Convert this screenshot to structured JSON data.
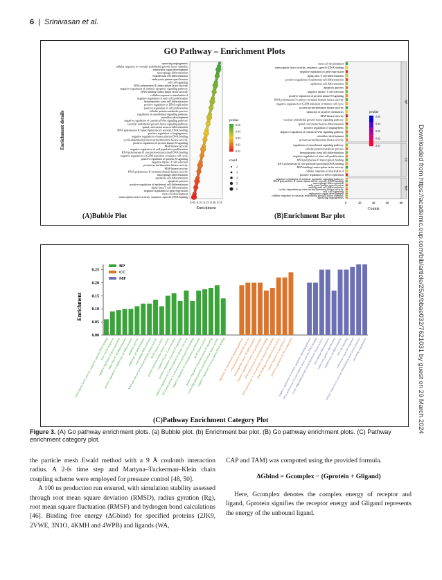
{
  "header": {
    "page_number": "6",
    "separator": "|",
    "authors": "Srinivasan et al."
  },
  "sidebar": {
    "download_note": "Downloaded from https://academic.oup.com/bib/article/25/2/bbae032/7621031 by guest on 29 March 2024"
  },
  "figure_top": {
    "title": "GO Pathway – Enrichment Plots",
    "bubble": {
      "panel_label": "(A)Bubble Plot",
      "y_axis_label": "Enrichment details",
      "x_axis_label": "Enrichment",
      "x_ticks": [
        "0.05",
        "0.10",
        "0.15",
        "0.20",
        "0.25"
      ],
      "pvalue_title": "pvalue",
      "pvalue_ticks": [
        "0.05",
        "0.04",
        "0.03",
        "0.02",
        "0.01"
      ],
      "count_title": "count",
      "count_ticks": [
        "2",
        "3",
        "4",
        "5",
        "6"
      ],
      "terms": [
        "sprouting angiogenesis",
        "cellular response to vascular endothelial growth factor stimulus",
        "embryonic organ development",
        "macrophage differentiation",
        "endodermal cell differentiation",
        "embryonic pattern specification",
        "cell-cell signaling",
        "RNA polymerase II transcription factor activity",
        "negative regulation of intrinsic apoptotic signaling pathway",
        "DNA binding transcription factor activity",
        "cellular response to interleukin-4",
        "negative regulation of stem cell proliferation",
        "hematopoietic stem cell differentiation",
        "positive regulation of DNA replication",
        "positive regulation of cell proliferation",
        "cellular protein metabolic process",
        "regulation of smoothened signaling pathway",
        "osteoblast development",
        "negative regulation of canonical Wnt signaling pathway",
        "vascular endothelial growth factor signaling pathway",
        "spinal cord motor neuron differentiation",
        "RNA polymerase II transcription factor activity, DNA binding",
        "positive regulation of angiogenesis",
        "negative regulation of transcription DNA binding",
        "cyclin-dependent protein serine/threonine kinase activity",
        "positive regulation of protein kinase B signaling",
        "MAP kinase activity",
        "negative regulation of cell population proliferation",
        "RNA polymerase II core promoter proximal DNA binding",
        "negative regulation of G2/M transition of mitotic cell cycle",
        "positive regulation of protein B signaling",
        "negative thymic T cell selection",
        "protein serine/threonine kinase activity",
        "MAP kinase activity",
        "RNA polymerase II–terminal domain kinase activity",
        "macrophage differentiation",
        "epithelial cell differentiation",
        "apoptotic process",
        "positive regulation of epidermal cell differentiation",
        "alpha–beta T cell differentiation",
        "negative regulation of gene expression",
        "stem cell development",
        "transcription factor activity, sequence–specific DNA binding"
      ]
    },
    "bar": {
      "panel_label": "(B)Enrichment  Bar plot",
      "x_axis_label": "Counts",
      "x_ticks": [
        "0",
        "20",
        "40",
        "60",
        "80"
      ],
      "pvalue_title": "pvalue",
      "pvalue_ticks": [
        "0.05",
        "0.04",
        "0.03",
        "0.02",
        "0.01"
      ],
      "facets": [
        "BP",
        "CC",
        "MF"
      ],
      "bp_terms": [
        "stem cell development",
        "transcription factor activity, sequence–specific DNA binding",
        "negative regulation of gene expression",
        "alpha–beta T cell differentiation",
        "positive regulation of epidermal cell differentiation",
        "epidermal cell differentiation",
        "apoptotic process",
        "negative thymic T cell selection",
        "positive regulation of protein kinase B signaling",
        "RNA polymerase II carboxy–terminal domain kinase activity",
        "negative regulation of G2/M transition of mitotic cell cycle",
        "protein serine/threonine kinase activity",
        "induction of positive chemotaxis",
        "MAP kinase activity",
        "vascular endothelial growth factor signaling pathway",
        "spinal cord motor neuron differentiation",
        "positive regulation of angiogenesis",
        "negative regulation of canonical Wnt signaling pathway",
        "osteoblast development",
        "protein serine/threonine kinase activity"
      ],
      "cc_terms": [
        "regulation of smoothened signaling pathway",
        "cellular protein metabolic process",
        "hematopoietic stem cell differentiation",
        "negative regulation of stem cell proliferation",
        "RNA polymerase II transcription binding",
        "RNA polymerase II core promoter proximal DNA binding",
        "RNA binding transcription factor activity",
        "cellular response to interleukin–4",
        "positive regulation of DNA replication"
      ],
      "mf_terms": [
        "negative regulation of intrinsic apoptotic signaling pathway",
        "RNA polymerase II transcription factor activity, DNA binding",
        "macrophage differentiation",
        "embryonic pattern specification",
        "endodermal cell differentiation",
        "cyclin–dependent protein serine/threonine kinase activity",
        "cell–cell signaling",
        "embryonic organ development",
        "cellular response to vascular endothelial growth factor stimulus",
        "sprouting angiogenesis"
      ]
    }
  },
  "figure_bottom": {
    "panel_label": "(C)Pathway Enrichment  Category Plot",
    "legend": [
      {
        "name": "BP",
        "color": "#3aa33a"
      },
      {
        "name": "CC",
        "color": "#d9762b"
      },
      {
        "name": "MF",
        "color": "#6b6fb3"
      }
    ]
  },
  "chart_data": {
    "type": "bar",
    "ylabel": "Enrichment",
    "ylim": [
      0,
      0.27
    ],
    "y_ticks": [
      "0.25",
      "0.20",
      "0.15",
      "0.10",
      "0.05",
      "0.00"
    ],
    "series": [
      {
        "name": "BP",
        "color": "#3aa33a",
        "categories": [
          "transcription factor activity, sequence–specific DNA binding",
          "stem cell development",
          "negative regulation of gene expression",
          "alpha–beta T cell differentiation",
          "positive regulation of epidermal cell differentiation",
          "apoptotic process",
          "epithelial cell differentiation",
          "macrophage differentiation",
          "RNA polymerase II–terminal domain kinase activity",
          "MAP kinase activity",
          "protein serine/threonine kinase activity",
          "negative thymic T cell selection",
          "positive regulation of protein B signaling",
          "negative regulation of G2/M transition of mitotic cell cycle",
          "RNA polymerase II core promoter proximal DNA binding",
          "negative regulation of cell population proliferation",
          "MAP kinase activity",
          "positive regulation of protein kinase B signaling",
          "cyclin–dependent protein serine/threonine kinase activity",
          "negative regulation of transcription DNA binding"
        ],
        "values": [
          0.06,
          0.09,
          0.095,
          0.1,
          0.1,
          0.11,
          0.12,
          0.12,
          0.135,
          0.11,
          0.15,
          0.16,
          0.13,
          0.17,
          0.13,
          0.17,
          0.175,
          0.18,
          0.19,
          0.14
        ]
      },
      {
        "name": "CC",
        "color": "#d9762b",
        "categories": [
          "regulation of smoothened signaling pathway",
          "cellular protein metabolic process",
          "hematopoietic stem cell differentiation",
          "negative regulation of stem cell proliferation",
          "RNA polymerase II transcription binding",
          "RNA polymerase II core promoter proximal DNA binding",
          "RNA binding transcription factor activity",
          "cellular response to interleukin–4",
          "positive regulation of DNA replication"
        ],
        "values": [
          0.19,
          0.2,
          0.2,
          0.2,
          0.17,
          0.18,
          0.22,
          0.22,
          0.24
        ]
      },
      {
        "name": "MF",
        "color": "#6b6fb3",
        "categories": [
          "negative regulation of intrinsic apoptotic signaling pathway",
          "RNA polymerase II transcription factor activity, DNA binding",
          "cyclin–dependent protein serine/threonine kinase activity",
          "macrophage differentiation",
          "embryonic pattern specification",
          "endodermal cell differentiation",
          "cell–cell signaling",
          "embryonic organ development",
          "cellular response to vascular endothelial growth factor stimulus",
          "sprouting angiogenesis"
        ],
        "values": [
          0.2,
          0.2,
          0.25,
          0.25,
          0.17,
          0.25,
          0.25,
          0.26,
          0.27,
          0.27
        ]
      }
    ]
  },
  "caption": {
    "label": "Figure 3.",
    "text": " (A) Go pathway enrichment plots. (a) Bubble plot. (b) Enrichment bar plot. (B) Go pathway enrichment plots. (C) Pathway enrichment category plot."
  },
  "left_col": {
    "p1": "the particle mesh Ewald method with a 9 Å coulomb interaction radius. A 2-fs time step and Martyna–Tuckerman–Klein chain coupling scheme were employed for pressure control [48, 50].",
    "p2": "A 100 ns production run ensured, with simulation stability assessed through root mean square deviation (RMSD), radius gyration (Rg), root mean square fluctuation (RMSF) and hydrogen bond calculations [46]. Binding free energy (ΔGbind) for specified proteins (2JK9, 2VWE, 3N1O, 4KMH and 4WPB) and ligands (WA,"
  },
  "right_col": {
    "p1": "CAP and TAM) was computed using the provided formula.",
    "equation": "ΔGbind = Gcomplex − (Gprotein + Gligand)",
    "p2": "Here, Gcomplex denotes the complex energy of receptor and ligand, Gprotein signifies the receptor energy and Gligand represents the energy of the unbound ligand."
  }
}
